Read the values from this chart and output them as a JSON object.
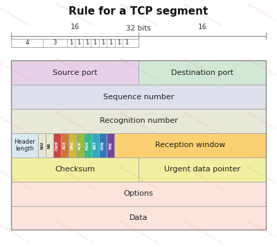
{
  "title": "Rule for a TCP segment",
  "title_fontsize": 11,
  "fig_bg": "#ffffff",
  "bits_label": "32 bits",
  "bit16_left": "16",
  "bit16_right": "16",
  "bit_numbers": [
    "4",
    "3",
    "1",
    "1",
    "1",
    "1",
    "1",
    "1",
    "1",
    "1"
  ],
  "flags": [
    "N/U",
    "NS",
    "CWR",
    "ACE",
    "URG",
    "ACK",
    "PSH",
    "RST",
    "SYN",
    "FIN"
  ],
  "flag_colors": [
    "#e8e8d0",
    "#e8e8d0",
    "#cc4444",
    "#cc7733",
    "#ccbb33",
    "#99bb33",
    "#33bb88",
    "#33aabb",
    "#3377bb",
    "#774499"
  ],
  "flag_text_dark": [
    true,
    true,
    false,
    false,
    false,
    false,
    false,
    false,
    false,
    false
  ],
  "row_configs": [
    {
      "label": "Source port",
      "color": "#e8d0e8",
      "xf": 0.0,
      "wf": 0.5,
      "ridx": 0,
      "fs": 8
    },
    {
      "label": "Destination port",
      "color": "#d0e8d4",
      "xf": 0.5,
      "wf": 0.5,
      "ridx": 0,
      "fs": 8
    },
    {
      "label": "Sequence number",
      "color": "#dde0ea",
      "xf": 0.0,
      "wf": 1.0,
      "ridx": 1,
      "fs": 8
    },
    {
      "label": "Recognition number",
      "color": "#e8e8d8",
      "xf": 0.0,
      "wf": 1.0,
      "ridx": 2,
      "fs": 8
    },
    {
      "label": "Header\nlength",
      "color": "#d8eaf0",
      "xf": 0.0,
      "wf": 0.105,
      "ridx": 3,
      "fs": 6
    },
    {
      "label": "Reception window",
      "color": "#fcd070",
      "xf": 0.405,
      "wf": 0.595,
      "ridx": 3,
      "fs": 8
    },
    {
      "label": "Checksum",
      "color": "#f0f0a0",
      "xf": 0.0,
      "wf": 0.5,
      "ridx": 4,
      "fs": 8
    },
    {
      "label": "Urgent data pointer",
      "color": "#f0f0a0",
      "xf": 0.5,
      "wf": 0.5,
      "ridx": 4,
      "fs": 8
    },
    {
      "label": "Options",
      "color": "#fce4dc",
      "xf": 0.0,
      "wf": 1.0,
      "ridx": 5,
      "fs": 8
    },
    {
      "label": "Data",
      "color": "#fce4dc",
      "xf": 0.0,
      "wf": 1.0,
      "ridx": 6,
      "fs": 8
    }
  ],
  "flags_xf0": 0.105,
  "flags_xf1": 0.405,
  "grid_lc": "#aaaaaa",
  "grid_lw": 0.7,
  "watermark_text": "sabercomlogica.com",
  "watermark_color": "#f0a0a0",
  "watermark_alpha": 0.38
}
